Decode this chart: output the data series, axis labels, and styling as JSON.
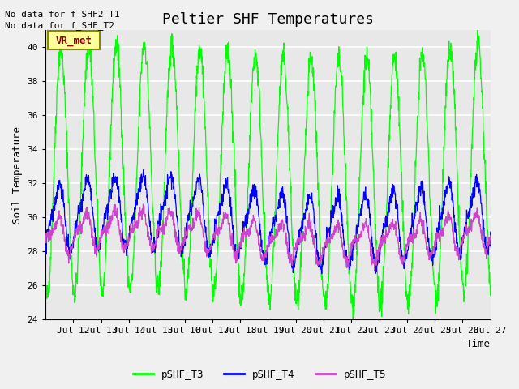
{
  "title": "Peltier SHF Temperatures",
  "ylabel": "Soil Temperature",
  "xlabel": "Time",
  "no_data_text": [
    "No data for f_SHF2_T1",
    "No data for f_SHF_T2"
  ],
  "vr_met_label": "VR_met",
  "ylim": [
    24,
    41
  ],
  "yticks": [
    24,
    26,
    28,
    30,
    32,
    34,
    36,
    38,
    40
  ],
  "xlim": [
    11.0,
    27.0
  ],
  "xtick_days": [
    12,
    13,
    14,
    15,
    16,
    17,
    18,
    19,
    20,
    21,
    22,
    23,
    24,
    25,
    26,
    27
  ],
  "colors": {
    "pSHF_T3": "#00FF00",
    "pSHF_T4": "#0000FF",
    "pSHF_T5": "#CC44CC"
  },
  "legend_labels": [
    "pSHF_T3",
    "pSHF_T4",
    "pSHF_T5"
  ],
  "bg_color": "#E8E8E8",
  "grid_color": "#FFFFFF",
  "fig_facecolor": "#F0F0F0",
  "font_family": "monospace",
  "title_fontsize": 13,
  "label_fontsize": 9,
  "tick_fontsize": 8,
  "nodata_fontsize": 8,
  "vrmet_fontsize": 9
}
